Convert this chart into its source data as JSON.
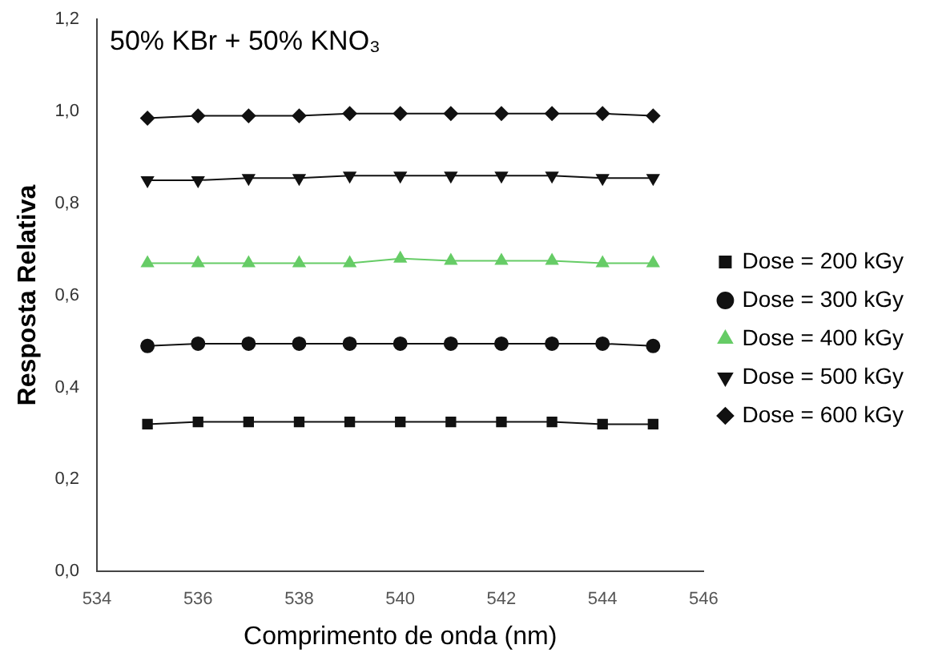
{
  "chart_data": {
    "type": "line",
    "title": "50% KBr + 50% KNO₃",
    "xlabel": "Comprimento de onda (nm)",
    "ylabel": "Resposta Relativa",
    "x": [
      535,
      536,
      537,
      538,
      539,
      540,
      541,
      542,
      543,
      544,
      545
    ],
    "xlim": [
      534,
      546
    ],
    "xticks": [
      534,
      536,
      538,
      540,
      542,
      544,
      546
    ],
    "ylim": [
      0,
      1.2
    ],
    "yticks": [
      {
        "value": 0,
        "label": "0,0"
      },
      {
        "value": 0.2,
        "label": "0,2"
      },
      {
        "value": 0.4,
        "label": "0,4"
      },
      {
        "value": 0.6,
        "label": "0,6"
      },
      {
        "value": 0.8,
        "label": "0,8"
      },
      {
        "value": 1.0,
        "label": "1,0"
      },
      {
        "value": 1.2,
        "label": "1,2"
      }
    ],
    "grid": false,
    "legend": "right",
    "line_style": "solid",
    "series": [
      {
        "name": "Dose = 200 kGy",
        "color": "#111111",
        "marker": "square",
        "values": [
          0.32,
          0.325,
          0.325,
          0.325,
          0.325,
          0.325,
          0.325,
          0.325,
          0.325,
          0.32,
          0.32
        ]
      },
      {
        "name": "Dose = 300 kGy",
        "color": "#111111",
        "marker": "circle",
        "values": [
          0.49,
          0.495,
          0.495,
          0.495,
          0.495,
          0.495,
          0.495,
          0.495,
          0.495,
          0.495,
          0.49
        ]
      },
      {
        "name": "Dose = 400 kGy",
        "color": "#66cc66",
        "marker": "triangle",
        "values": [
          0.67,
          0.67,
          0.67,
          0.67,
          0.67,
          0.68,
          0.675,
          0.675,
          0.675,
          0.67,
          0.67
        ]
      },
      {
        "name": "Dose = 500 kGy",
        "color": "#111111",
        "marker": "triangle_down",
        "values": [
          0.85,
          0.85,
          0.855,
          0.855,
          0.86,
          0.86,
          0.86,
          0.86,
          0.86,
          0.855,
          0.855
        ]
      },
      {
        "name": "Dose = 600 kGy",
        "color": "#111111",
        "marker": "diamond",
        "values": [
          0.985,
          0.99,
          0.99,
          0.99,
          0.995,
          0.995,
          0.995,
          0.995,
          0.995,
          0.995,
          0.99
        ]
      }
    ]
  }
}
